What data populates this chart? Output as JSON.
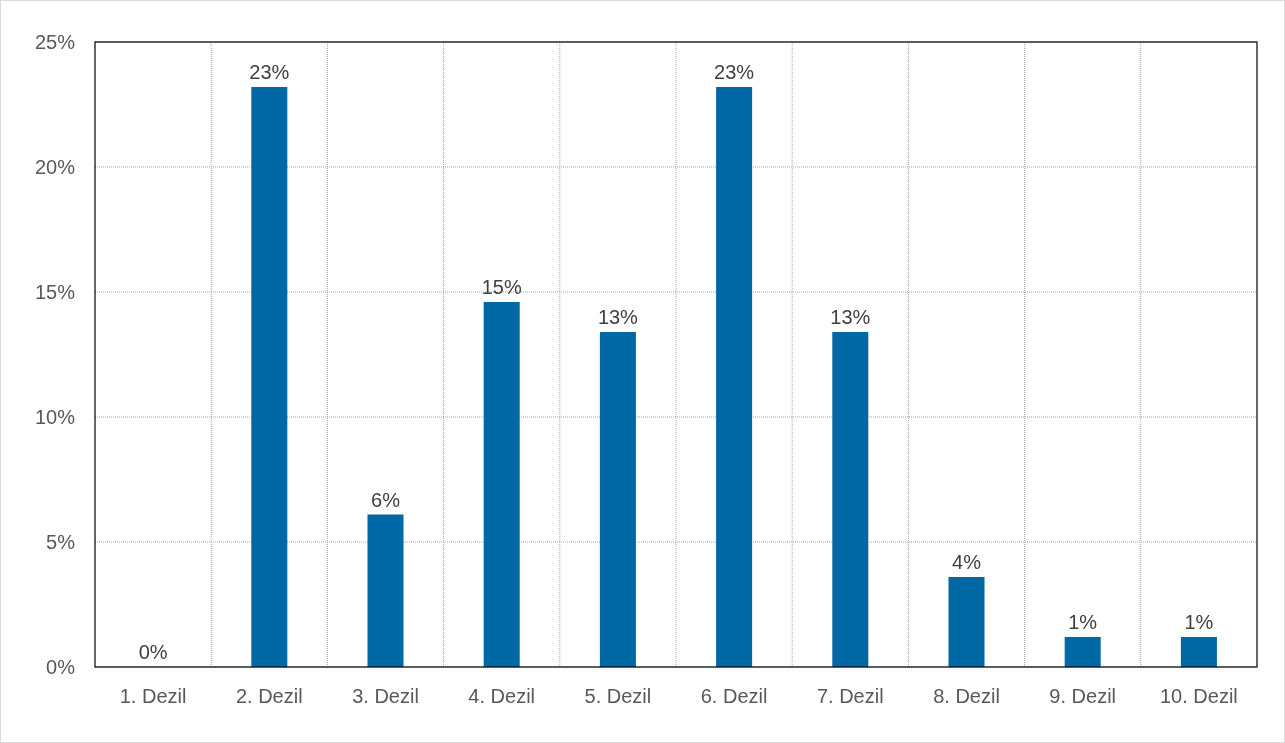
{
  "chart_data": {
    "type": "bar",
    "categories": [
      "1. Dezil",
      "2. Dezil",
      "3. Dezil",
      "4. Dezil",
      "5. Dezil",
      "6. Dezil",
      "7. Dezil",
      "8. Dezil",
      "9. Dezil",
      "10. Dezil"
    ],
    "values": [
      0,
      23.2,
      6.1,
      14.6,
      13.4,
      23.2,
      13.4,
      3.6,
      1.2,
      1.2
    ],
    "value_labels": [
      "0%",
      "23%",
      "6%",
      "15%",
      "13%",
      "23%",
      "13%",
      "4%",
      "1%",
      "1%"
    ],
    "color": "#0069a5",
    "ylim": [
      0,
      25
    ],
    "yticks": [
      {
        "value": 0,
        "label": "0%"
      },
      {
        "value": 5,
        "label": "5%"
      },
      {
        "value": 10,
        "label": "10%"
      },
      {
        "value": 15,
        "label": "15%"
      },
      {
        "value": 20,
        "label": "20%"
      },
      {
        "value": 25,
        "label": "25%"
      }
    ],
    "grid": true
  }
}
